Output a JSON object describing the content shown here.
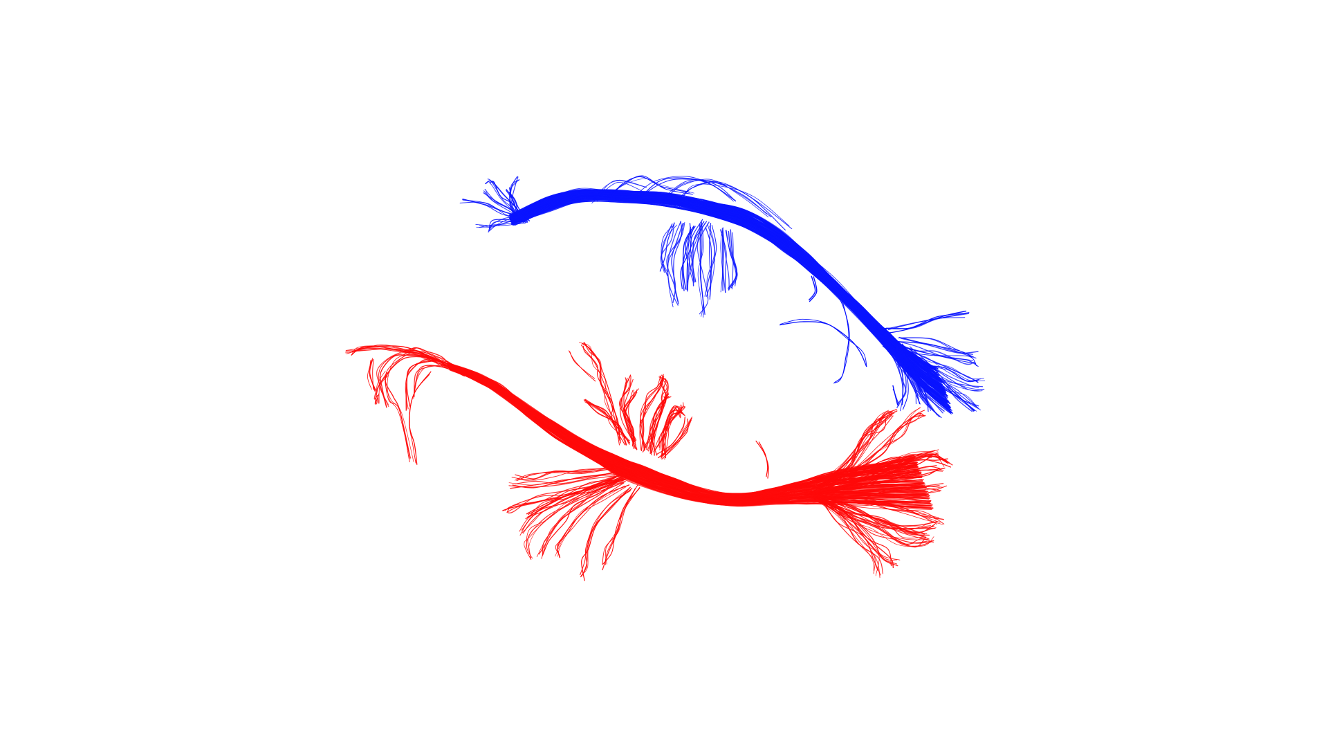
{
  "scene": {
    "background_color": "#ffffff",
    "bundles": [
      {
        "id": "blue-bundle",
        "color": "#0a14ff",
        "fiber_count": 140
      },
      {
        "id": "red-bundle",
        "color": "#ff0a0a",
        "fiber_count": 160
      }
    ]
  }
}
